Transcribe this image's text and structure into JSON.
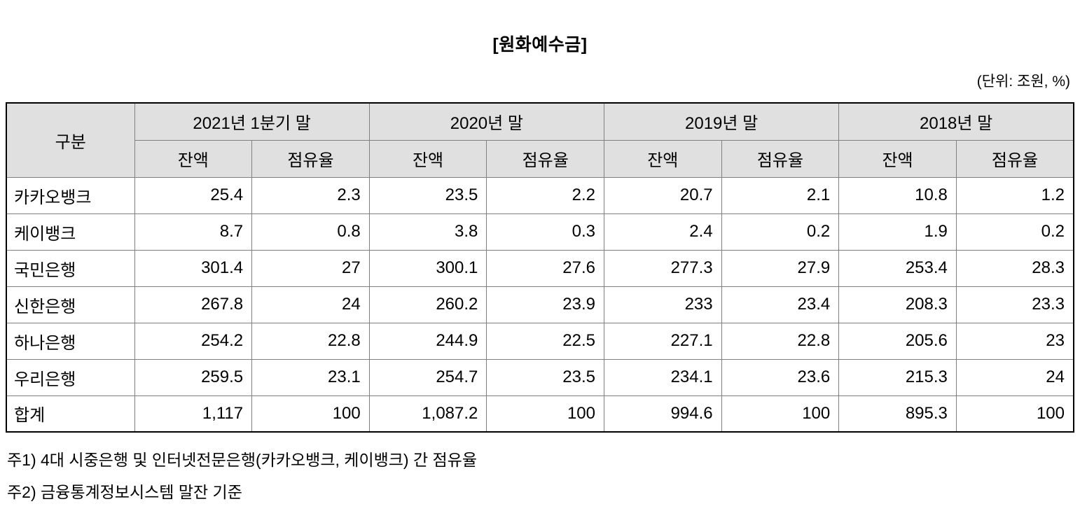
{
  "title": "[원화예수금]",
  "unit_note": "(단위: 조원, %)",
  "table": {
    "corner_header": "구분",
    "period_headers": [
      "2021년 1분기 말",
      "2020년 말",
      "2019년 말",
      "2018년 말"
    ],
    "sub_headers": [
      "잔액",
      "점유율"
    ],
    "rows": [
      {
        "name": "카카오뱅크",
        "values": [
          "25.4",
          "2.3",
          "23.5",
          "2.2",
          "20.7",
          "2.1",
          "10.8",
          "1.2"
        ]
      },
      {
        "name": "케이뱅크",
        "values": [
          "8.7",
          "0.8",
          "3.8",
          "0.3",
          "2.4",
          "0.2",
          "1.9",
          "0.2"
        ]
      },
      {
        "name": "국민은행",
        "values": [
          "301.4",
          "27",
          "300.1",
          "27.6",
          "277.3",
          "27.9",
          "253.4",
          "28.3"
        ]
      },
      {
        "name": "신한은행",
        "values": [
          "267.8",
          "24",
          "260.2",
          "23.9",
          "233",
          "23.4",
          "208.3",
          "23.3"
        ]
      },
      {
        "name": "하나은행",
        "values": [
          "254.2",
          "22.8",
          "244.9",
          "22.5",
          "227.1",
          "22.8",
          "205.6",
          "23"
        ]
      },
      {
        "name": "우리은행",
        "values": [
          "259.5",
          "23.1",
          "254.7",
          "23.5",
          "234.1",
          "23.6",
          "215.3",
          "24"
        ]
      },
      {
        "name": "합계",
        "values": [
          "1,117",
          "100",
          "1,087.2",
          "100",
          "994.6",
          "100",
          "895.3",
          "100"
        ]
      }
    ]
  },
  "footnotes": [
    "주1) 4대 시중은행 및 인터넷전문은행(카카오뱅크, 케이뱅크) 간 점유율",
    "주2) 금융통계정보시스템 말잔 기준"
  ],
  "chart_data": {
    "type": "table",
    "title": "원화예수금",
    "unit": "조원, %",
    "column_groups": [
      "2021년 1분기 말",
      "2020년 말",
      "2019년 말",
      "2018년 말"
    ],
    "sub_columns": [
      "잔액",
      "점유율"
    ],
    "row_labels": [
      "카카오뱅크",
      "케이뱅크",
      "국민은행",
      "신한은행",
      "하나은행",
      "우리은행",
      "합계"
    ],
    "values": [
      [
        25.4,
        2.3,
        23.5,
        2.2,
        20.7,
        2.1,
        10.8,
        1.2
      ],
      [
        8.7,
        0.8,
        3.8,
        0.3,
        2.4,
        0.2,
        1.9,
        0.2
      ],
      [
        301.4,
        27,
        300.1,
        27.6,
        277.3,
        27.9,
        253.4,
        28.3
      ],
      [
        267.8,
        24,
        260.2,
        23.9,
        233,
        23.4,
        208.3,
        23.3
      ],
      [
        254.2,
        22.8,
        244.9,
        22.5,
        227.1,
        22.8,
        205.6,
        23
      ],
      [
        259.5,
        23.1,
        254.7,
        23.5,
        234.1,
        23.6,
        215.3,
        24
      ],
      [
        1117,
        100,
        1087.2,
        100,
        994.6,
        100,
        895.3,
        100
      ]
    ]
  },
  "colors": {
    "header_bg": "#e0e0e0",
    "outer_border": "#000000",
    "inner_border": "#808080",
    "text": "#000000",
    "background": "#ffffff"
  }
}
